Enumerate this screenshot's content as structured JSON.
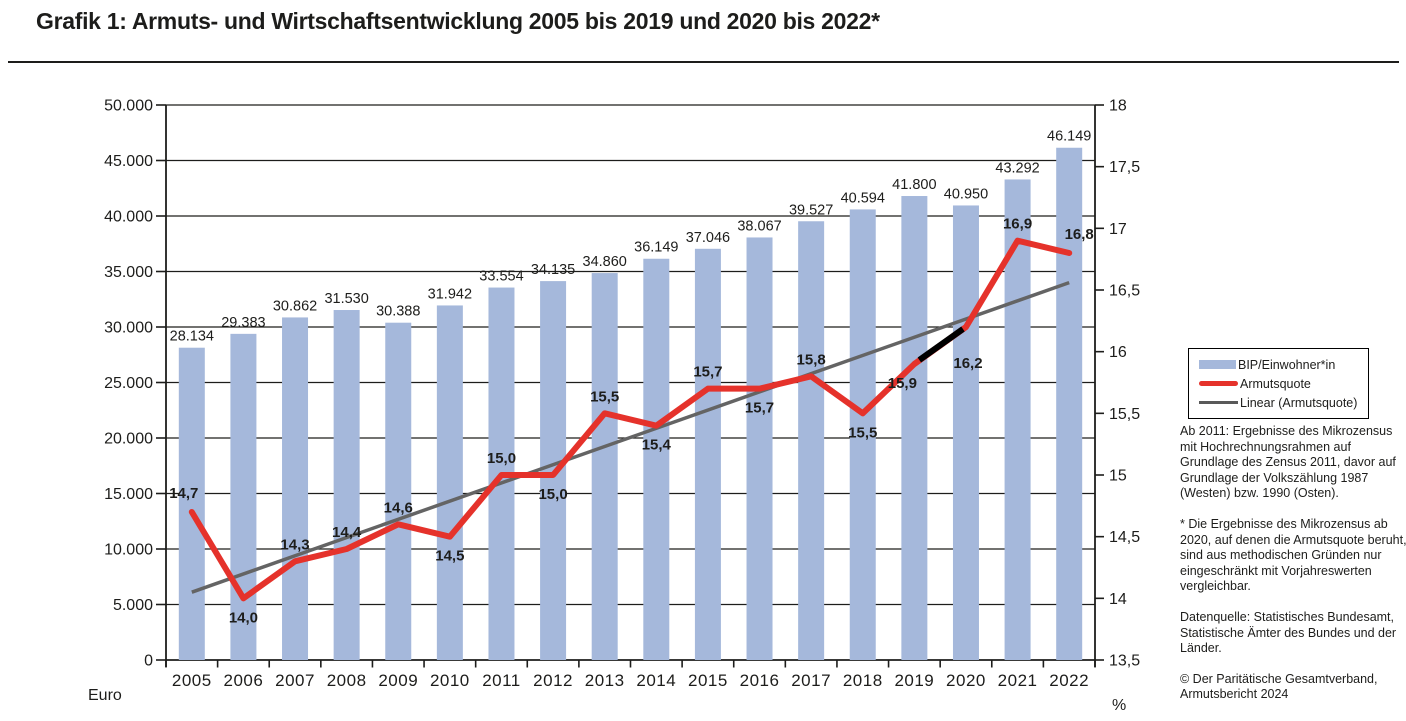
{
  "page": {
    "title": "Grafik 1: Armuts- und Wirtschaftsentwicklung 2005 bis 2019 und 2020 bis 2022*",
    "left_axis_unit": "Euro",
    "right_axis_unit": "%"
  },
  "legend": {
    "items": [
      {
        "label": "BIP/Einwohner*in",
        "color": "#a5b8db",
        "swatch": "bar"
      },
      {
        "label": "Armutsquote",
        "color": "#e5322b",
        "swatch": "thick-line"
      },
      {
        "label": "Linear (Armutsquote)",
        "color": "#595959",
        "swatch": "thin-line"
      }
    ]
  },
  "notes": {
    "method": "Ab 2011: Ergebnisse des Mikrozensus mit Hochrechnungsrahmen auf Grundlage des Zensus 2011, davor auf Grundlage der Volkszählung 1987 (Westen) bzw. 1990 (Osten).",
    "asterisk": "* Die Ergebnisse des Mikrozensus ab 2020, auf denen die Armutsquote beruht, sind aus methodischen Gründen nur eingeschränkt mit Vorjahreswerten vergleichbar.",
    "source": "Datenquelle: Statistisches Bundesamt, Statistische Ämter des Bundes und der Länder.",
    "copyright": "© Der Paritätische Gesamtverband, Armutsbericht 2024"
  },
  "chart_data": {
    "type": "bar",
    "categories": [
      "2005",
      "2006",
      "2007",
      "2008",
      "2009",
      "2010",
      "2011",
      "2012",
      "2013",
      "2014",
      "2015",
      "2016",
      "2017",
      "2018",
      "2019",
      "2020",
      "2021",
      "2022"
    ],
    "series": [
      {
        "name": "BIP/Einwohner*in",
        "type": "bar",
        "color": "#a5b8db",
        "values": [
          28134,
          29383,
          30862,
          31530,
          30388,
          31942,
          33554,
          34135,
          34860,
          36149,
          37046,
          38067,
          39527,
          40594,
          41800,
          40950,
          43292,
          46149
        ],
        "labels": [
          "28.134",
          "29.383",
          "30.862",
          "31.530",
          "30.388",
          "31.942",
          "33.554",
          "34.135",
          "34.860",
          "36.149",
          "37.046",
          "38.067",
          "39.527",
          "40.594",
          "41.800",
          "40.950",
          "43.292",
          "46.149"
        ]
      },
      {
        "name": "Armutsquote",
        "type": "line",
        "color": "#e5322b",
        "values": [
          14.7,
          14.0,
          14.3,
          14.4,
          14.6,
          14.5,
          15.0,
          15.0,
          15.5,
          15.4,
          15.7,
          15.7,
          15.8,
          15.5,
          15.9,
          16.2,
          16.9,
          16.8
        ],
        "labels": [
          "14,7",
          "14,0",
          "14,3",
          "14,4",
          "14,6",
          "14,5",
          "15,0",
          "15,0",
          "15,5",
          "15,4",
          "15,7",
          "15,7",
          "15,8",
          "15,5",
          "15,9",
          "16,2",
          "16,9",
          "16,8"
        ],
        "label_positions": [
          "above",
          "below",
          "above",
          "above",
          "above",
          "below",
          "above",
          "below",
          "above",
          "below",
          "above",
          "below",
          "above",
          "below",
          "below",
          "below",
          "above",
          "above"
        ],
        "break_segment": {
          "from": "2019",
          "to": "2020",
          "color": "#000000"
        }
      },
      {
        "name": "Linear (Armutsquote)",
        "type": "trendline",
        "color": "#646464",
        "start_value": 14.05,
        "end_value": 16.56
      }
    ],
    "left_axis": {
      "title": "Euro",
      "min": 0,
      "max": 50000,
      "tick_step": 5000,
      "tick_labels": [
        "0",
        "5.000",
        "10.000",
        "15.000",
        "20.000",
        "25.000",
        "30.000",
        "35.000",
        "40.000",
        "45.000",
        "50.000"
      ]
    },
    "right_axis": {
      "title": "%",
      "min": 13.5,
      "max": 18,
      "tick_step": 0.5,
      "tick_labels": [
        "13,5",
        "14",
        "14,5",
        "15",
        "15,5",
        "16",
        "16,5",
        "17",
        "17,5",
        "18"
      ]
    },
    "grid": true,
    "legend_position": "right"
  }
}
